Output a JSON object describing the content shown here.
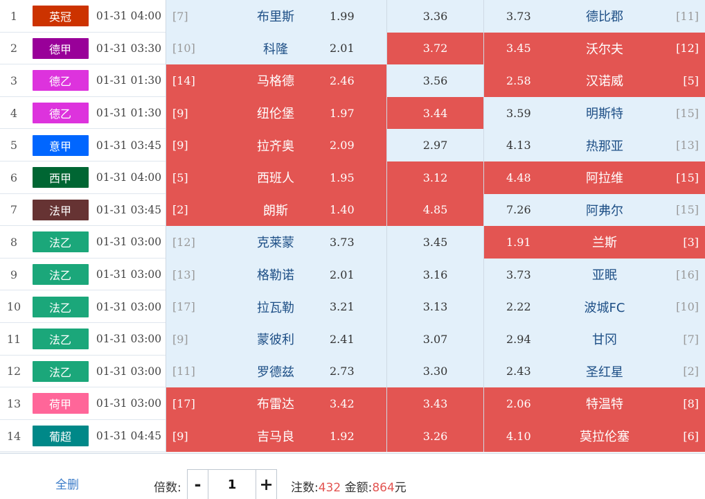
{
  "matches": [
    {
      "num": "1",
      "league": "英冠",
      "color": "#cc3300",
      "time": "01-31 04:00",
      "home_rank": "[7]",
      "home": "布里斯",
      "win": "1.99",
      "draw": "3.36",
      "lose": "3.73",
      "away": "德比郡",
      "away_rank": "[11]",
      "a_sel": false,
      "b_sel": false,
      "c_sel": false
    },
    {
      "num": "2",
      "league": "德甲",
      "color": "#990099",
      "time": "01-31 03:30",
      "home_rank": "[10]",
      "home": "科隆",
      "win": "2.01",
      "draw": "3.72",
      "lose": "3.45",
      "away": "沃尔夫",
      "away_rank": "[12]",
      "a_sel": false,
      "b_sel": true,
      "c_sel": true
    },
    {
      "num": "3",
      "league": "德乙",
      "color": "#dd33dd",
      "time": "01-31 01:30",
      "home_rank": "[14]",
      "home": "马格德",
      "win": "2.46",
      "draw": "3.56",
      "lose": "2.58",
      "away": "汉诺威",
      "away_rank": "[5]",
      "a_sel": true,
      "b_sel": false,
      "c_sel": true
    },
    {
      "num": "4",
      "league": "德乙",
      "color": "#dd33dd",
      "time": "01-31 01:30",
      "home_rank": "[9]",
      "home": "纽伦堡",
      "win": "1.97",
      "draw": "3.44",
      "lose": "3.59",
      "away": "明斯特",
      "away_rank": "[15]",
      "a_sel": true,
      "b_sel": true,
      "c_sel": false
    },
    {
      "num": "5",
      "league": "意甲",
      "color": "#0066ff",
      "time": "01-31 03:45",
      "home_rank": "[9]",
      "home": "拉齐奥",
      "win": "2.09",
      "draw": "2.97",
      "lose": "4.13",
      "away": "热那亚",
      "away_rank": "[13]",
      "a_sel": true,
      "b_sel": false,
      "c_sel": false
    },
    {
      "num": "6",
      "league": "西甲",
      "color": "#006633",
      "time": "01-31 04:00",
      "home_rank": "[5]",
      "home": "西班人",
      "win": "1.95",
      "draw": "3.12",
      "lose": "4.48",
      "away": "阿拉维",
      "away_rank": "[15]",
      "a_sel": true,
      "b_sel": true,
      "c_sel": true
    },
    {
      "num": "7",
      "league": "法甲",
      "color": "#663333",
      "time": "01-31 03:45",
      "home_rank": "[2]",
      "home": "朗斯",
      "win": "1.40",
      "draw": "4.85",
      "lose": "7.26",
      "away": "阿弗尔",
      "away_rank": "[15]",
      "a_sel": true,
      "b_sel": true,
      "c_sel": false
    },
    {
      "num": "8",
      "league": "法乙",
      "color": "#1ba77a",
      "time": "01-31 03:00",
      "home_rank": "[12]",
      "home": "克莱蒙",
      "win": "3.73",
      "draw": "3.45",
      "lose": "1.91",
      "away": "兰斯",
      "away_rank": "[3]",
      "a_sel": false,
      "b_sel": false,
      "c_sel": true
    },
    {
      "num": "9",
      "league": "法乙",
      "color": "#1ba77a",
      "time": "01-31 03:00",
      "home_rank": "[13]",
      "home": "格勒诺",
      "win": "2.01",
      "draw": "3.16",
      "lose": "3.73",
      "away": "亚眠",
      "away_rank": "[16]",
      "a_sel": false,
      "b_sel": false,
      "c_sel": false
    },
    {
      "num": "10",
      "league": "法乙",
      "color": "#1ba77a",
      "time": "01-31 03:00",
      "home_rank": "[17]",
      "home": "拉瓦勒",
      "win": "3.21",
      "draw": "3.13",
      "lose": "2.22",
      "away": "波城FC",
      "away_rank": "[10]",
      "a_sel": false,
      "b_sel": false,
      "c_sel": false
    },
    {
      "num": "11",
      "league": "法乙",
      "color": "#1ba77a",
      "time": "01-31 03:00",
      "home_rank": "[9]",
      "home": "蒙彼利",
      "win": "2.41",
      "draw": "3.07",
      "lose": "2.94",
      "away": "甘冈",
      "away_rank": "[7]",
      "a_sel": false,
      "b_sel": false,
      "c_sel": false
    },
    {
      "num": "12",
      "league": "法乙",
      "color": "#1ba77a",
      "time": "01-31 03:00",
      "home_rank": "[11]",
      "home": "罗德兹",
      "win": "2.73",
      "draw": "3.30",
      "lose": "2.43",
      "away": "圣红星",
      "away_rank": "[2]",
      "a_sel": false,
      "b_sel": false,
      "c_sel": false
    },
    {
      "num": "13",
      "league": "荷甲",
      "color": "#ff6699",
      "time": "01-31 03:00",
      "home_rank": "[17]",
      "home": "布雷达",
      "win": "3.42",
      "draw": "3.43",
      "lose": "2.06",
      "away": "特温特",
      "away_rank": "[8]",
      "a_sel": true,
      "b_sel": true,
      "c_sel": true
    },
    {
      "num": "14",
      "league": "葡超",
      "color": "#008888",
      "time": "01-31 04:45",
      "home_rank": "[9]",
      "home": "吉马良",
      "win": "1.92",
      "draw": "3.26",
      "lose": "4.10",
      "away": "莫拉伦塞",
      "away_rank": "[6]",
      "a_sel": true,
      "b_sel": true,
      "c_sel": true
    }
  ],
  "footer": {
    "clear_label": "全删",
    "multiplier_label": "倍数:",
    "minus_label": "-",
    "plus_label": "+",
    "multiplier_value": "1",
    "bets_label": "注数:",
    "bets_value": "432",
    "amount_label": "金额:",
    "amount_value": "864",
    "currency": "元"
  },
  "colors": {
    "selected": "#e35552",
    "unselected": "#e3f0fa",
    "highlight_text": "#e35552"
  }
}
